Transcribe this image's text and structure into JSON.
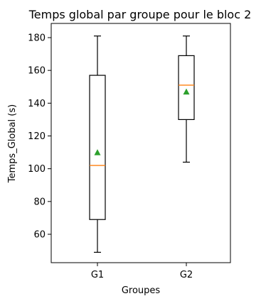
{
  "chart_data": {
    "type": "box",
    "title": "Temps global par groupe pour le bloc 2",
    "xlabel": "Groupes",
    "ylabel": "Temps_Global (s)",
    "categories": [
      "G1",
      "G2"
    ],
    "ylim": [
      40,
      190
    ],
    "yticks": [
      60,
      80,
      100,
      120,
      140,
      160,
      180
    ],
    "grid": false,
    "legend": "none",
    "boxes": [
      {
        "label": "G1",
        "whisker_low": 49,
        "q1": 69,
        "median": 102,
        "q3": 157,
        "whisker_high": 181,
        "mean": 110
      },
      {
        "label": "G2",
        "whisker_low": 104,
        "q1": 130,
        "median": 151,
        "q3": 169,
        "whisker_high": 181,
        "mean": 147
      }
    ],
    "colors": {
      "median": "#ff7f0e",
      "mean": "#2ca02c",
      "box": "#000000"
    }
  }
}
